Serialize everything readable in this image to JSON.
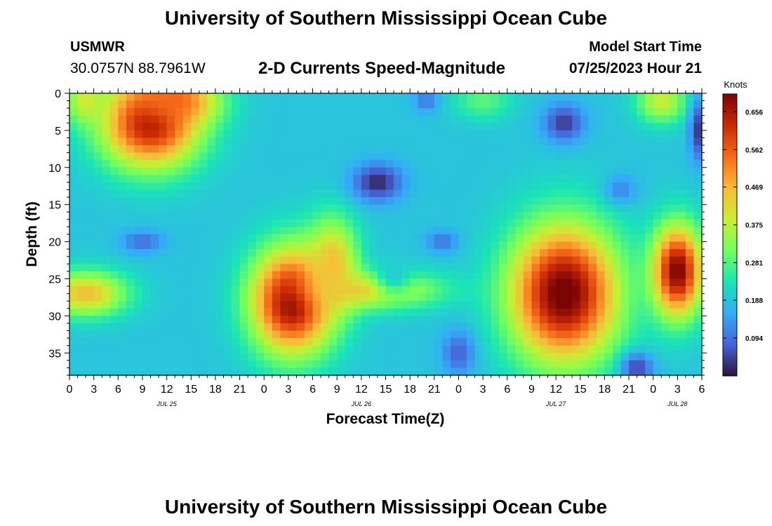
{
  "header": {
    "title": "University of Southern Mississippi Ocean Cube",
    "station": "USMWR",
    "coordinates": "30.0757N  88.7961W",
    "subtitle": "2-D Currents Speed-Magnitude",
    "start_label": "Model Start Time",
    "start_value": "07/25/2023 Hour 21"
  },
  "footer": {
    "title": "University of Southern Mississippi Ocean Cube"
  },
  "chart_data": {
    "type": "heatmap",
    "title": "2-D Currents Speed-Magnitude",
    "xlabel": "Forecast Time(Z)",
    "ylabel": "Depth (ft)",
    "x_ticks": [
      "0",
      "3",
      "6",
      "9",
      "12",
      "15",
      "18",
      "21",
      "0",
      "3",
      "6",
      "9",
      "12",
      "15",
      "18",
      "21",
      "0",
      "3",
      "6",
      "9",
      "12",
      "15",
      "18",
      "21",
      "0",
      "3",
      "6"
    ],
    "x_range_hours": [
      0,
      78
    ],
    "date_labels": [
      {
        "label": "JUL 25",
        "hour": 12
      },
      {
        "label": "JUL 26",
        "hour": 36
      },
      {
        "label": "JUL 27",
        "hour": 60
      },
      {
        "label": "JUL 28",
        "hour": 75
      }
    ],
    "y_ticks": [
      0,
      5,
      10,
      15,
      20,
      25,
      30,
      35
    ],
    "ylim": [
      0,
      38
    ],
    "y_inverted": true,
    "colorbar": {
      "label": "Knots",
      "range": [
        0.0,
        0.7
      ],
      "ticks": [
        "0.656",
        "0.562",
        "0.469",
        "0.375",
        "0.281",
        "0.188",
        "0.094"
      ]
    },
    "colormap_stops": [
      "#30123b",
      "#4662d7",
      "#36aaf9",
      "#1ae4b6",
      "#72fe5e",
      "#c8ef34",
      "#faba39",
      "#f66b19",
      "#ca2a04",
      "#7a0403"
    ],
    "background_speed": 0.19,
    "features": [
      {
        "hour": 10,
        "depth": 4,
        "sx": 6,
        "sy": 6,
        "speed": 0.66
      },
      {
        "hour": 13,
        "depth": 1,
        "sx": 5,
        "sy": 3,
        "speed": 0.55
      },
      {
        "hour": 2,
        "depth": 1,
        "sx": 2.5,
        "sy": 3,
        "speed": 0.4
      },
      {
        "hour": 2,
        "depth": 27,
        "sx": 5,
        "sy": 3,
        "speed": 0.46
      },
      {
        "hour": 27.5,
        "depth": 28,
        "sx": 5,
        "sy": 7,
        "speed": 0.7
      },
      {
        "hour": 32.5,
        "depth": 23,
        "sx": 3,
        "sy": 6,
        "speed": 0.46
      },
      {
        "hour": 37,
        "depth": 26.5,
        "sx": 8,
        "sy": 2.5,
        "speed": 0.45
      },
      {
        "hour": 40,
        "depth": 24.5,
        "sx": 2.5,
        "sy": 3,
        "speed": 0.2
      },
      {
        "hour": 61,
        "depth": 27,
        "sx": 6.5,
        "sy": 9,
        "speed": 0.72
      },
      {
        "hour": 75,
        "depth": 24,
        "sx": 3,
        "sy": 6,
        "speed": 0.7
      },
      {
        "hour": 73,
        "depth": 1,
        "sx": 3,
        "sy": 3,
        "speed": 0.39
      },
      {
        "hour": 51,
        "depth": 1,
        "sx": 3.5,
        "sy": 2.5,
        "speed": 0.29
      },
      {
        "hour": 61,
        "depth": 4,
        "sx": 2.5,
        "sy": 2.5,
        "speed": 0.04
      },
      {
        "hour": 38,
        "depth": 12,
        "sx": 3,
        "sy": 2.5,
        "speed": 0.02
      },
      {
        "hour": 44,
        "depth": 1,
        "sx": 1.5,
        "sy": 1.5,
        "speed": 0.1
      },
      {
        "hour": 9,
        "depth": 20,
        "sx": 2.5,
        "sy": 1.5,
        "speed": 0.09
      },
      {
        "hour": 46,
        "depth": 20,
        "sx": 2,
        "sy": 1.5,
        "speed": 0.1
      },
      {
        "hour": 48,
        "depth": 35,
        "sx": 2,
        "sy": 3,
        "speed": 0.08
      },
      {
        "hour": 70,
        "depth": 37,
        "sx": 2,
        "sy": 2,
        "speed": 0.05
      },
      {
        "hour": 77.5,
        "depth": 5,
        "sx": 1,
        "sy": 4,
        "speed": 0.04
      },
      {
        "hour": 68,
        "depth": 13,
        "sx": 2,
        "sy": 2,
        "speed": 0.12
      }
    ]
  }
}
